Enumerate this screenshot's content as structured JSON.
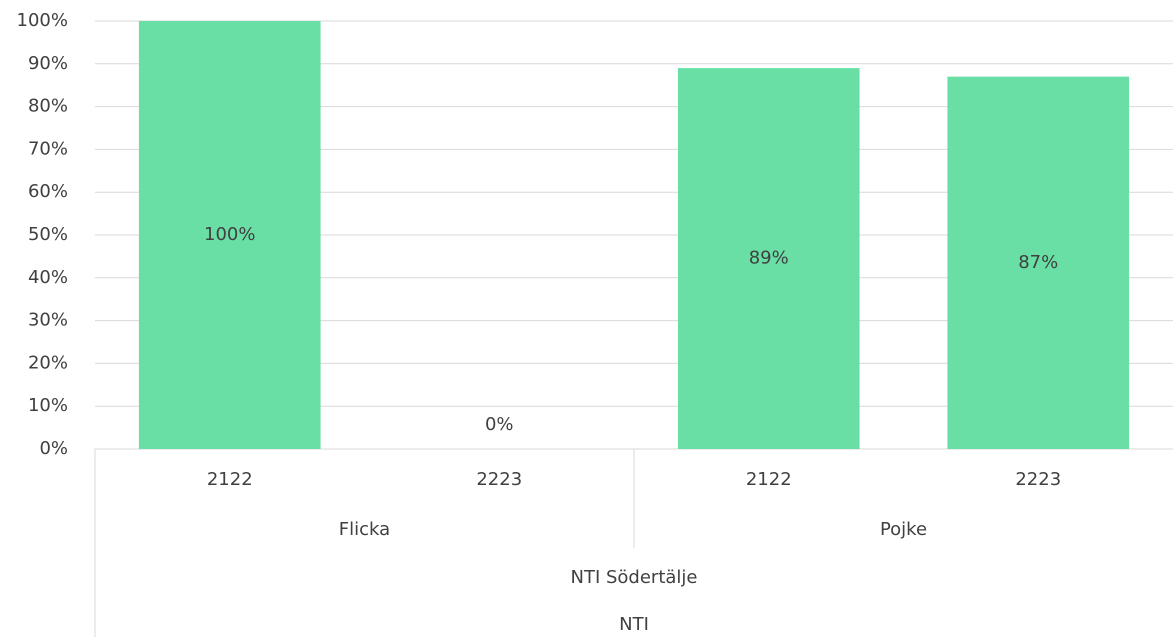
{
  "chart_data": {
    "type": "bar",
    "categories": [
      "2122",
      "2223",
      "2122",
      "2223"
    ],
    "group_levels": [
      [
        "Flicka",
        "Pojke"
      ],
      [
        "NTI Södertälje"
      ],
      [
        "NTI"
      ]
    ],
    "values": [
      100,
      0,
      89,
      87
    ],
    "value_labels": [
      "100%",
      "0%",
      "89%",
      "87%"
    ],
    "color": "#69dea5",
    "ylim": [
      0,
      100
    ],
    "yticks": [
      {
        "value": 0,
        "label": "0%"
      },
      {
        "value": 10,
        "label": "10%"
      },
      {
        "value": 20,
        "label": "20%"
      },
      {
        "value": 30,
        "label": "30%"
      },
      {
        "value": 40,
        "label": "40%"
      },
      {
        "value": 50,
        "label": "50%"
      },
      {
        "value": 60,
        "label": "60%"
      },
      {
        "value": 70,
        "label": "70%"
      },
      {
        "value": 80,
        "label": "80%"
      },
      {
        "value": 90,
        "label": "90%"
      },
      {
        "value": 100,
        "label": "100%"
      }
    ],
    "grid": true
  }
}
